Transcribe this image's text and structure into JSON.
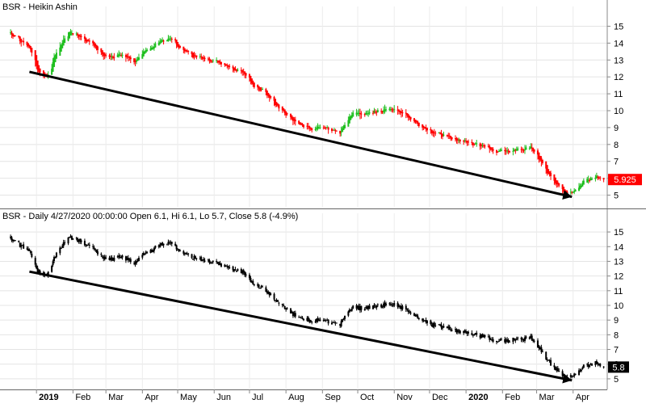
{
  "chart_data": [
    {
      "type": "candlestick",
      "title": "BSR - Heikin Ashin",
      "ylim": [
        4.5,
        15.5
      ],
      "y_ticks": [
        5,
        6,
        7,
        8,
        9,
        10,
        11,
        12,
        13,
        14,
        15
      ],
      "grid": true,
      "last_value_label": "5.925",
      "colors": {
        "up": "#1fbf1f",
        "down": "#ff0000",
        "trendline": "#000000",
        "last_badge": "#ff0000"
      },
      "trendline": {
        "start": [
          "2018-12-26",
          12.3
        ],
        "end": [
          "2020-03-31",
          4.9
        ]
      },
      "close_series": {
        "x": [
          "2018-12-10",
          "2018-12-18",
          "2018-12-27",
          "2019-01-02",
          "2019-01-10",
          "2019-01-18",
          "2019-01-28",
          "2019-02-04",
          "2019-02-14",
          "2019-02-25",
          "2019-03-04",
          "2019-03-14",
          "2019-03-25",
          "2019-04-04",
          "2019-04-15",
          "2019-04-25",
          "2019-05-03",
          "2019-05-13",
          "2019-05-23",
          "2019-06-03",
          "2019-06-13",
          "2019-06-24",
          "2019-07-03",
          "2019-07-15",
          "2019-07-25",
          "2019-08-05",
          "2019-08-15",
          "2019-08-26",
          "2019-09-05",
          "2019-09-16",
          "2019-09-26",
          "2019-10-04",
          "2019-10-14",
          "2019-10-24",
          "2019-11-01",
          "2019-11-12",
          "2019-11-22",
          "2019-12-03",
          "2019-12-13",
          "2019-12-23",
          "2020-01-03",
          "2020-01-14",
          "2020-01-24",
          "2020-02-04",
          "2020-02-14",
          "2020-02-25",
          "2020-03-04",
          "2020-03-13",
          "2020-03-23",
          "2020-04-01",
          "2020-04-09",
          "2020-04-20",
          "2020-04-27"
        ],
        "y": [
          14.6,
          14.1,
          13.6,
          12.3,
          12.0,
          13.6,
          14.6,
          14.5,
          14.1,
          13.4,
          13.1,
          13.3,
          12.9,
          13.6,
          14.1,
          14.3,
          13.6,
          13.3,
          13.1,
          12.9,
          12.6,
          12.3,
          11.6,
          11.0,
          10.3,
          9.5,
          9.0,
          9.0,
          8.9,
          8.7,
          9.9,
          9.8,
          9.9,
          10.0,
          10.1,
          9.7,
          9.1,
          8.7,
          8.6,
          8.3,
          8.1,
          7.9,
          7.6,
          7.6,
          7.7,
          7.8,
          7.0,
          6.0,
          5.2,
          5.2,
          5.8,
          6.1,
          5.925
        ]
      }
    },
    {
      "type": "candlestick",
      "title": "BSR - Daily 4/27/2020 00:00:00 Open 6.1, Hi 6.1, Lo 5.7, Close 5.8 (-4.9%)",
      "ylim": [
        4.5,
        15.5
      ],
      "y_ticks": [
        5,
        6,
        7,
        8,
        9,
        10,
        11,
        12,
        13,
        14,
        15
      ],
      "grid": true,
      "last_value_label": "5.8",
      "colors": {
        "up": "#1fbf1f",
        "down": "#ff0000",
        "trendline": "#000000",
        "last_badge": "#000000"
      },
      "trendline": {
        "start": [
          "2018-12-26",
          12.3
        ],
        "end": [
          "2020-03-31",
          4.9
        ]
      },
      "close_series": {
        "x": [
          "2018-12-10",
          "2018-12-18",
          "2018-12-27",
          "2019-01-02",
          "2019-01-10",
          "2019-01-18",
          "2019-01-28",
          "2019-02-04",
          "2019-02-14",
          "2019-02-25",
          "2019-03-04",
          "2019-03-14",
          "2019-03-25",
          "2019-04-04",
          "2019-04-15",
          "2019-04-25",
          "2019-05-03",
          "2019-05-13",
          "2019-05-23",
          "2019-06-03",
          "2019-06-13",
          "2019-06-24",
          "2019-07-03",
          "2019-07-15",
          "2019-07-25",
          "2019-08-05",
          "2019-08-15",
          "2019-08-26",
          "2019-09-05",
          "2019-09-16",
          "2019-09-26",
          "2019-10-04",
          "2019-10-14",
          "2019-10-24",
          "2019-11-01",
          "2019-11-12",
          "2019-11-22",
          "2019-12-03",
          "2019-12-13",
          "2019-12-23",
          "2020-01-03",
          "2020-01-14",
          "2020-01-24",
          "2020-02-04",
          "2020-02-14",
          "2020-02-25",
          "2020-03-04",
          "2020-03-13",
          "2020-03-23",
          "2020-04-01",
          "2020-04-09",
          "2020-04-20",
          "2020-04-27"
        ],
        "y": [
          14.6,
          14.1,
          13.6,
          12.3,
          12.0,
          13.6,
          14.6,
          14.5,
          14.1,
          13.4,
          13.1,
          13.3,
          12.9,
          13.6,
          14.1,
          14.3,
          13.6,
          13.3,
          13.1,
          12.9,
          12.6,
          12.3,
          11.6,
          11.0,
          10.3,
          9.5,
          9.0,
          9.0,
          8.9,
          8.7,
          9.9,
          9.8,
          9.9,
          10.0,
          10.1,
          9.7,
          9.1,
          8.7,
          8.6,
          8.3,
          8.1,
          7.9,
          7.6,
          7.6,
          7.7,
          7.8,
          7.0,
          6.0,
          5.2,
          5.2,
          5.8,
          6.1,
          5.8
        ]
      }
    }
  ],
  "x_axis": {
    "range": [
      "2018-12-01",
      "2020-04-30"
    ],
    "ticks": [
      {
        "date": "2019-01-01",
        "label": "2019",
        "bold": true
      },
      {
        "date": "2019-02-01",
        "label": "Feb"
      },
      {
        "date": "2019-03-01",
        "label": "Mar"
      },
      {
        "date": "2019-04-01",
        "label": "Apr"
      },
      {
        "date": "2019-05-01",
        "label": "May"
      },
      {
        "date": "2019-06-01",
        "label": "Jun"
      },
      {
        "date": "2019-07-01",
        "label": "Jul"
      },
      {
        "date": "2019-08-01",
        "label": "Aug"
      },
      {
        "date": "2019-09-01",
        "label": "Sep"
      },
      {
        "date": "2019-10-01",
        "label": "Oct"
      },
      {
        "date": "2019-11-01",
        "label": "Nov"
      },
      {
        "date": "2019-12-01",
        "label": "Dec"
      },
      {
        "date": "2020-01-01",
        "label": "2020",
        "bold": true
      },
      {
        "date": "2020-02-01",
        "label": "Feb"
      },
      {
        "date": "2020-03-01",
        "label": "Mar"
      },
      {
        "date": "2020-04-01",
        "label": "Apr"
      }
    ]
  }
}
